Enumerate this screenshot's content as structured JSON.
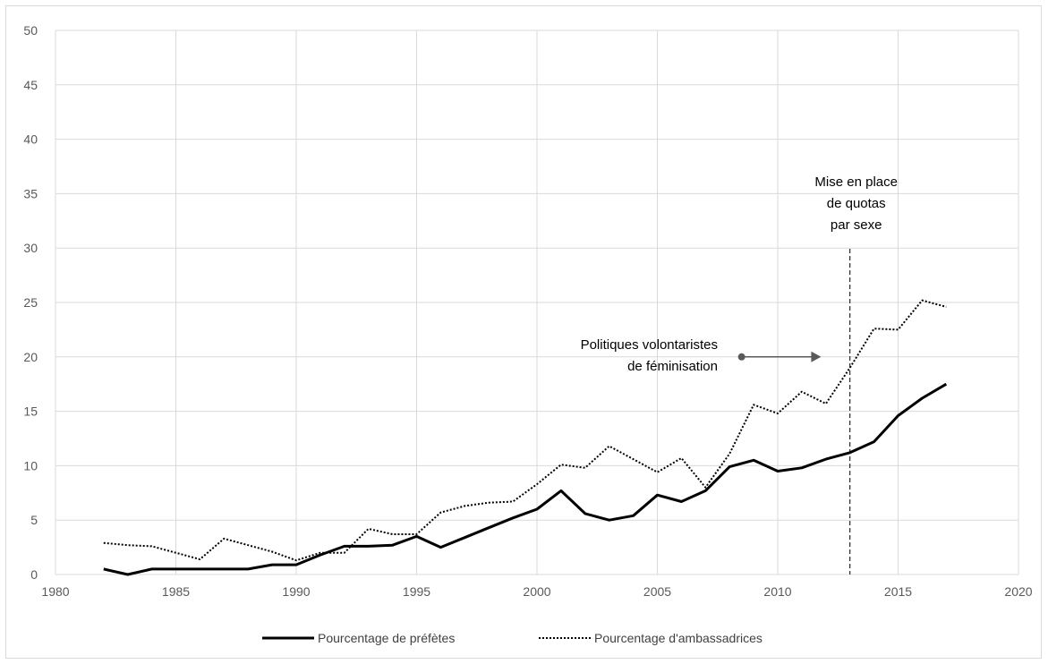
{
  "chart_data": {
    "type": "line",
    "title": "",
    "xlabel": "",
    "ylabel": "",
    "xlim": [
      1980,
      2020
    ],
    "ylim": [
      0,
      50
    ],
    "x_ticks": [
      1980,
      1985,
      1990,
      1995,
      2000,
      2005,
      2010,
      2015,
      2020
    ],
    "y_ticks": [
      0,
      5,
      10,
      15,
      20,
      25,
      30,
      35,
      40,
      45,
      50
    ],
    "grid": true,
    "legend_position": "bottom",
    "series": [
      {
        "name": "Pourcentage de préfètes",
        "style": "solid",
        "color": "#000000",
        "x": [
          1982,
          1983,
          1984,
          1985,
          1986,
          1987,
          1988,
          1989,
          1990,
          1991,
          1992,
          1993,
          1994,
          1995,
          1996,
          1997,
          1998,
          1999,
          2000,
          2001,
          2002,
          2003,
          2004,
          2005,
          2006,
          2007,
          2008,
          2009,
          2010,
          2011,
          2012,
          2013,
          2014,
          2015,
          2016,
          2017
        ],
        "y": [
          0.5,
          0.0,
          0.5,
          0.5,
          0.5,
          0.5,
          0.5,
          0.9,
          0.9,
          1.8,
          2.6,
          2.6,
          2.7,
          3.5,
          2.5,
          3.4,
          4.3,
          5.2,
          6.0,
          7.7,
          5.6,
          5.0,
          5.4,
          7.3,
          6.7,
          7.7,
          9.9,
          10.5,
          9.5,
          9.8,
          10.6,
          11.2,
          12.2,
          14.6,
          16.2,
          17.5
        ]
      },
      {
        "name": "Pourcentage d'ambassadrices",
        "style": "dotted",
        "color": "#000000",
        "x": [
          1982,
          1983,
          1984,
          1985,
          1986,
          1987,
          1988,
          1989,
          1990,
          1991,
          1992,
          1993,
          1994,
          1995,
          1996,
          1997,
          1998,
          1999,
          2000,
          2001,
          2002,
          2003,
          2004,
          2005,
          2006,
          2007,
          2008,
          2009,
          2010,
          2011,
          2012,
          2013,
          2014,
          2015,
          2016,
          2017
        ],
        "y": [
          2.9,
          2.7,
          2.6,
          2.0,
          1.4,
          3.3,
          2.7,
          2.1,
          1.3,
          2.0,
          2.0,
          4.2,
          3.7,
          3.7,
          5.7,
          6.3,
          6.6,
          6.7,
          8.3,
          10.1,
          9.8,
          11.8,
          10.6,
          9.4,
          10.7,
          8.0,
          11.1,
          15.6,
          14.8,
          16.8,
          15.7,
          19.0,
          22.6,
          22.5,
          25.2,
          24.6
        ]
      }
    ],
    "annotations": [
      {
        "id": "quota",
        "lines": [
          "Mise en place",
          "de quotas",
          "par sexe"
        ],
        "vline_x": 2013
      },
      {
        "id": "feminisation",
        "lines": [
          "Politiques volontaristes",
          "de féminisation"
        ],
        "arrow_from": [
          2008.5,
          20
        ],
        "arrow_to": [
          2011.8,
          20
        ]
      }
    ]
  }
}
